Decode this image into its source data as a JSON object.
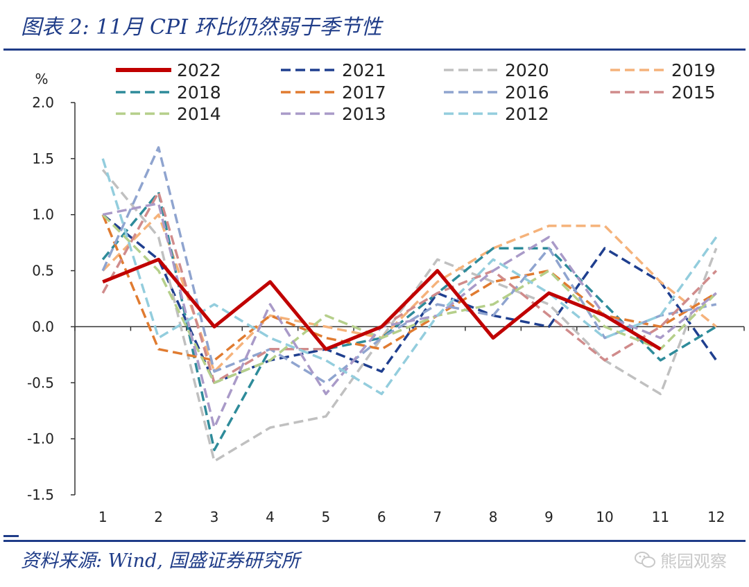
{
  "header": {
    "title": "图表 2:  11月 CPI 环比仍然弱于季节性"
  },
  "footer": {
    "source": "资料来源:  Wind,  国盛证券研究所",
    "watermark": "熊园观察"
  },
  "chart_data": {
    "type": "line",
    "title": "图表 2:  11月 CPI 环比仍然弱于季节性",
    "ylabel": "%",
    "xlabel": "",
    "x": [
      1,
      2,
      3,
      4,
      5,
      6,
      7,
      8,
      9,
      10,
      11,
      12
    ],
    "x_tick_labels": [
      "1",
      "2",
      "3",
      "4",
      "5",
      "6",
      "7",
      "8",
      "9",
      "10",
      "11",
      "12"
    ],
    "ylim": [
      -1.5,
      2.0
    ],
    "y_ticks": [
      -1.5,
      -1.0,
      -0.5,
      0.0,
      0.5,
      1.0,
      1.5,
      2.0
    ],
    "y_tick_labels": [
      "-1.5",
      "-1.0",
      "-0.5",
      "0.0",
      "0.5",
      "1.0",
      "1.5",
      "2.0"
    ],
    "grid": false,
    "legend_position": "top",
    "series": [
      {
        "name": "2022",
        "color": "#c00000",
        "style": "solid",
        "values": [
          0.4,
          0.6,
          0.0,
          0.4,
          -0.2,
          0.0,
          0.5,
          -0.1,
          0.3,
          0.1,
          -0.2,
          null
        ]
      },
      {
        "name": "2021",
        "color": "#1f3f8f",
        "style": "dashed",
        "values": [
          1.0,
          0.6,
          -0.5,
          -0.3,
          -0.2,
          -0.4,
          0.3,
          0.1,
          0.0,
          0.7,
          0.4,
          -0.3
        ]
      },
      {
        "name": "2020",
        "color": "#c0c0c0",
        "style": "dashed",
        "values": [
          1.4,
          0.8,
          -1.2,
          -0.9,
          -0.8,
          -0.1,
          0.6,
          0.4,
          0.2,
          -0.3,
          -0.6,
          0.7
        ]
      },
      {
        "name": "2019",
        "color": "#f5b27a",
        "style": "dashed",
        "values": [
          0.5,
          1.0,
          -0.4,
          0.1,
          0.0,
          -0.1,
          0.4,
          0.7,
          0.9,
          0.9,
          0.4,
          0.0
        ]
      },
      {
        "name": "2018",
        "color": "#2e8b9a",
        "style": "dashed",
        "values": [
          0.6,
          1.2,
          -1.1,
          -0.2,
          -0.2,
          -0.1,
          0.3,
          0.7,
          0.7,
          0.2,
          -0.3,
          0.0
        ]
      },
      {
        "name": "2017",
        "color": "#e07b30",
        "style": "dashed",
        "values": [
          1.0,
          -0.2,
          -0.3,
          0.1,
          -0.1,
          -0.2,
          0.1,
          0.4,
          0.5,
          0.1,
          0.0,
          0.3
        ]
      },
      {
        "name": "2016",
        "color": "#8fa4cf",
        "style": "dashed",
        "values": [
          0.5,
          1.6,
          -0.4,
          -0.2,
          -0.5,
          -0.1,
          0.2,
          0.1,
          0.7,
          -0.1,
          0.1,
          0.2
        ]
      },
      {
        "name": "2015",
        "color": "#d08b8b",
        "style": "dashed",
        "values": [
          0.3,
          1.2,
          -0.5,
          -0.2,
          -0.2,
          0.0,
          0.3,
          0.5,
          0.1,
          -0.3,
          0.0,
          0.5
        ]
      },
      {
        "name": "2014",
        "color": "#b5cf8a",
        "style": "dashed",
        "values": [
          1.0,
          0.5,
          -0.5,
          -0.3,
          0.1,
          -0.1,
          0.1,
          0.2,
          0.5,
          0.0,
          -0.2,
          0.3
        ]
      },
      {
        "name": "2013",
        "color": "#a99ac8",
        "style": "dashed",
        "values": [
          1.0,
          1.1,
          -0.9,
          0.2,
          -0.6,
          0.0,
          0.1,
          0.5,
          0.8,
          0.1,
          -0.1,
          0.3
        ]
      },
      {
        "name": "2012",
        "color": "#93cddd",
        "style": "dashed",
        "values": [
          1.5,
          -0.1,
          0.2,
          -0.1,
          -0.3,
          -0.6,
          0.1,
          0.6,
          0.3,
          -0.1,
          0.1,
          0.8
        ]
      }
    ]
  }
}
